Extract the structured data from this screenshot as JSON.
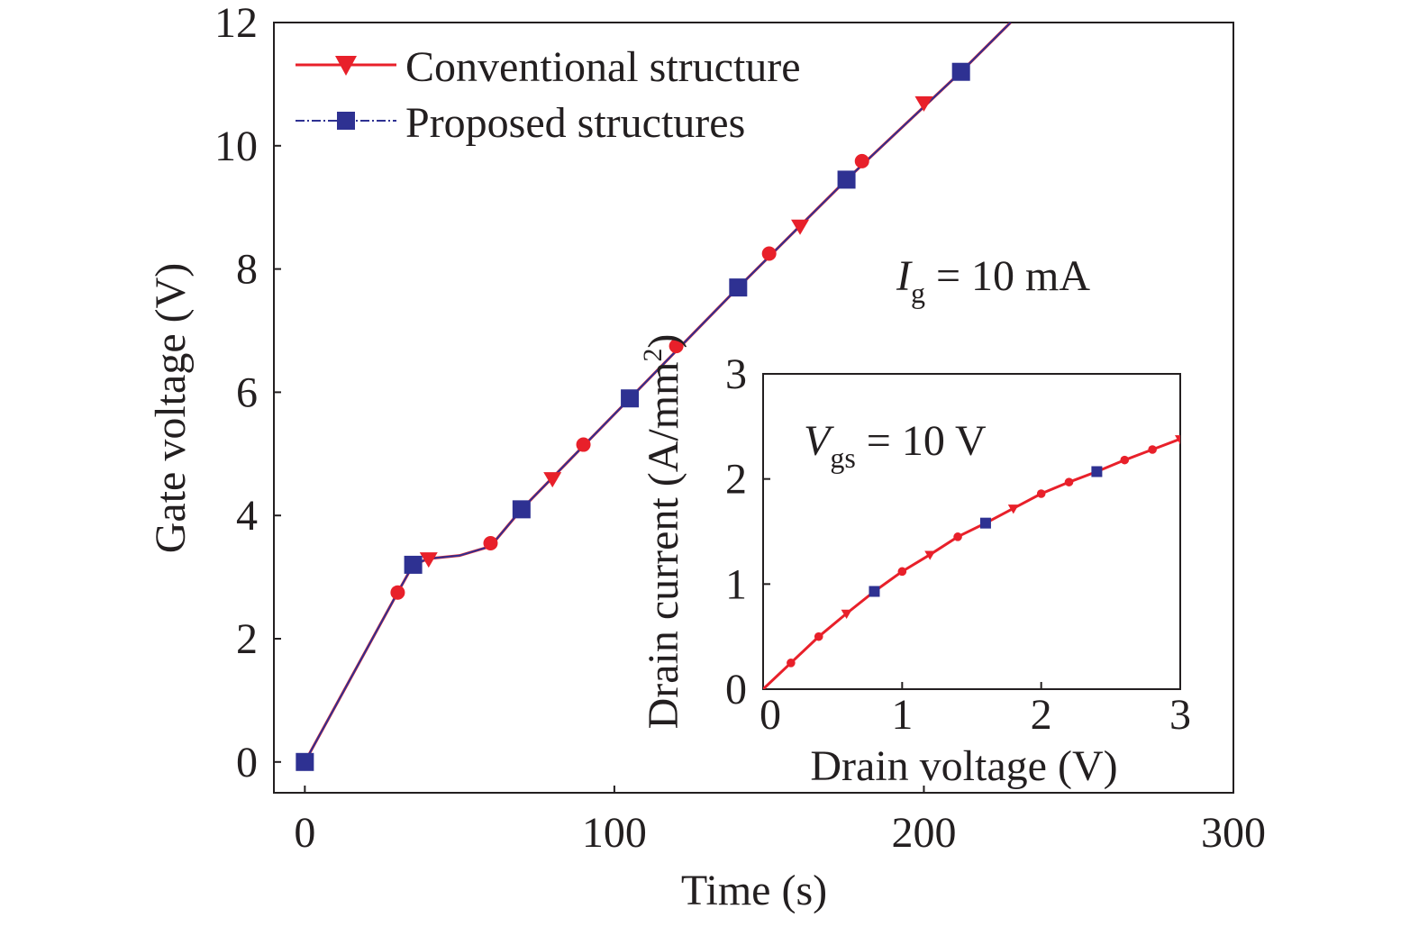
{
  "chart_data": [
    {
      "type": "line",
      "xlabel": "Time (s)",
      "ylabel": "Gate voltage (V)",
      "xlim": [
        -10,
        300
      ],
      "ylim": [
        -0.5,
        12
      ],
      "xticks": [
        0,
        100,
        200,
        300
      ],
      "yticks": [
        0,
        2,
        4,
        6,
        8,
        10,
        12
      ],
      "annotation": {
        "symbol": "I",
        "sub": "g",
        "text": " = 10 mA"
      },
      "legend_position": "top-left",
      "series": [
        {
          "name": "Conventional structure",
          "color": "#e8202a",
          "marker": "triangle-down",
          "line": [
            [
              0,
              0
            ],
            [
              30,
              2.75
            ],
            [
              35,
              3.2
            ],
            [
              40,
              3.3
            ],
            [
              50,
              3.35
            ],
            [
              60,
              3.5
            ],
            [
              70,
              4.1
            ],
            [
              105,
              5.9
            ],
            [
              140,
              7.7
            ],
            [
              175,
              9.45
            ],
            [
              212,
              11.2
            ],
            [
              228,
              12
            ]
          ],
          "markers": [
            [
              0,
              0
            ],
            [
              40,
              3.3
            ],
            [
              80,
              4.6
            ],
            [
              160,
              8.7
            ],
            [
              200,
              10.7
            ]
          ],
          "circles": [
            [
              30,
              2.75
            ],
            [
              60,
              3.55
            ],
            [
              90,
              5.15
            ],
            [
              120,
              6.75
            ],
            [
              150,
              8.25
            ],
            [
              180,
              9.75
            ]
          ]
        },
        {
          "name": "Proposed structures",
          "color": "#2e3192",
          "marker": "square",
          "line": [
            [
              0,
              0
            ],
            [
              30,
              2.75
            ],
            [
              35,
              3.2
            ],
            [
              40,
              3.3
            ],
            [
              50,
              3.35
            ],
            [
              60,
              3.5
            ],
            [
              70,
              4.1
            ],
            [
              105,
              5.9
            ],
            [
              140,
              7.7
            ],
            [
              175,
              9.45
            ],
            [
              212,
              11.2
            ],
            [
              228,
              12
            ]
          ],
          "markers": [
            [
              0,
              0
            ],
            [
              35,
              3.2
            ],
            [
              70,
              4.1
            ],
            [
              105,
              5.9
            ],
            [
              140,
              7.7
            ],
            [
              175,
              9.45
            ],
            [
              212,
              11.2
            ]
          ]
        }
      ]
    },
    {
      "type": "line",
      "xlabel": "Drain voltage (V)",
      "ylabel": "Drain current (A/mm²)",
      "ylabel_parts": {
        "main": "Drain current (A/mm",
        "sup": "2",
        "end": ")"
      },
      "xlim": [
        0,
        3
      ],
      "ylim": [
        0,
        3
      ],
      "xticks": [
        0,
        1,
        2,
        3
      ],
      "yticks": [
        0,
        1,
        2,
        3
      ],
      "annotation": {
        "symbol": "V",
        "sub": "gs",
        "text": " = 10 V"
      },
      "series": [
        {
          "name": "Conventional structure",
          "color": "#e8202a",
          "line": [
            [
              0,
              0
            ],
            [
              0.2,
              0.25
            ],
            [
              0.4,
              0.5
            ],
            [
              0.6,
              0.72
            ],
            [
              0.8,
              0.93
            ],
            [
              1.0,
              1.12
            ],
            [
              1.2,
              1.28
            ],
            [
              1.4,
              1.45
            ],
            [
              1.6,
              1.58
            ],
            [
              1.8,
              1.72
            ],
            [
              2.0,
              1.86
            ],
            [
              2.2,
              1.97
            ],
            [
              2.4,
              2.07
            ],
            [
              2.6,
              2.18
            ],
            [
              2.8,
              2.28
            ],
            [
              3.0,
              2.38
            ]
          ],
          "markers": [
            [
              0.6,
              0.72
            ],
            [
              1.2,
              1.28
            ],
            [
              1.8,
              1.72
            ],
            [
              3.0,
              2.38
            ]
          ],
          "circles": [
            [
              0.2,
              0.25
            ],
            [
              0.4,
              0.5
            ],
            [
              1.0,
              1.12
            ],
            [
              1.4,
              1.45
            ],
            [
              2.0,
              1.86
            ],
            [
              2.2,
              1.97
            ],
            [
              2.6,
              2.18
            ],
            [
              2.8,
              2.28
            ]
          ]
        },
        {
          "name": "Proposed structures",
          "color": "#2e3192",
          "markers": [
            [
              0.8,
              0.93
            ],
            [
              1.6,
              1.58
            ],
            [
              2.4,
              2.07
            ]
          ]
        }
      ]
    }
  ]
}
